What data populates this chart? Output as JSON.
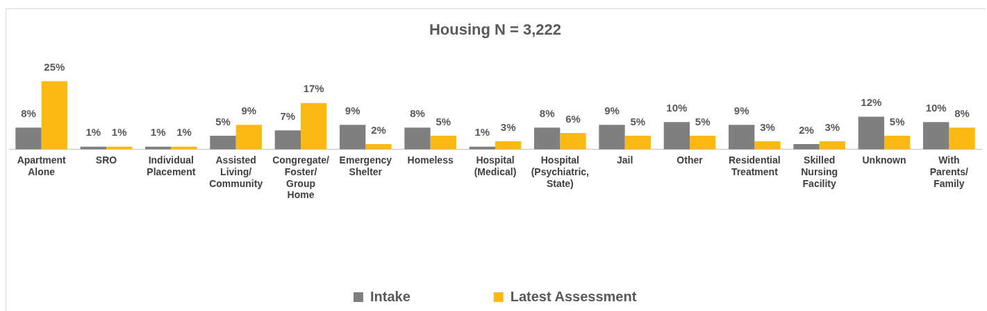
{
  "chart_data": {
    "type": "bar",
    "title": "Housing N = 3,222",
    "legend": "bottom",
    "categories": [
      "Apartment Alone",
      "SRO",
      "Individual Placement",
      "Assisted Living/ Community",
      "Congregate/ Foster/ Group Home",
      "Emergency Shelter",
      "Homeless",
      "Hospital (Medical)",
      "Hospital (Psychiatric, State)",
      "Jail",
      "Other",
      "Residential Treatment",
      "Skilled Nursing Facility",
      "Unknown",
      "With Parents/ Family"
    ],
    "series": [
      {
        "name": "Intake",
        "color": "#7f7f7f",
        "values": [
          8,
          1,
          1,
          5,
          7,
          9,
          8,
          1,
          8,
          9,
          10,
          9,
          2,
          12,
          10
        ],
        "value_labels": [
          "8%",
          "1%",
          "1%",
          "5%",
          "7%",
          "9%",
          "8%",
          "1%",
          "8%",
          "9%",
          "10%",
          "9%",
          "2%",
          "12%",
          "10%"
        ]
      },
      {
        "name": "Latest Assessment",
        "color": "#fdb913",
        "values": [
          25,
          1,
          1,
          9,
          17,
          2,
          5,
          3,
          6,
          5,
          5,
          3,
          3,
          5,
          8
        ],
        "value_labels": [
          "25%",
          "1%",
          "1%",
          "9%",
          "17%",
          "2%",
          "5%",
          "3%",
          "6%",
          "5%",
          "5%",
          "3%",
          "3%",
          "5%",
          "8%"
        ]
      }
    ]
  }
}
